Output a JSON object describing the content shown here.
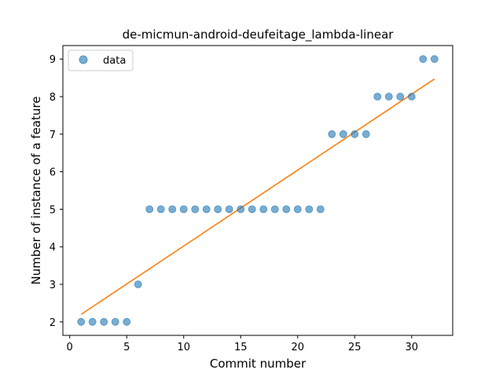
{
  "chart_data": {
    "type": "scatter",
    "title": "de-micmun-android-deufeitage_lambda-linear",
    "xlabel": "Commit number",
    "ylabel": "Number of instance of a feature",
    "xlim": [
      -0.6,
      33.6
    ],
    "ylim": [
      1.64,
      9.36
    ],
    "xticks": [
      0,
      5,
      10,
      15,
      20,
      25,
      30
    ],
    "yticks": [
      2,
      3,
      4,
      5,
      6,
      7,
      8,
      9
    ],
    "grid": false,
    "legend_position": "top-left",
    "series": [
      {
        "name": "data",
        "kind": "scatter",
        "color": "#1f77b4",
        "x": [
          1,
          2,
          3,
          4,
          5,
          6,
          7,
          8,
          9,
          10,
          11,
          12,
          13,
          14,
          15,
          16,
          17,
          18,
          19,
          20,
          21,
          22,
          23,
          24,
          25,
          26,
          27,
          28,
          29,
          30,
          31,
          32
        ],
        "y": [
          2,
          2,
          2,
          2,
          2,
          3,
          5,
          5,
          5,
          5,
          5,
          5,
          5,
          5,
          5,
          5,
          5,
          5,
          5,
          5,
          5,
          5,
          7,
          7,
          7,
          7,
          8,
          8,
          8,
          8,
          9,
          9
        ]
      },
      {
        "name": "",
        "kind": "line",
        "color": "#ff7f0e",
        "x": [
          1,
          32
        ],
        "y": [
          2.2,
          8.47
        ]
      }
    ]
  }
}
